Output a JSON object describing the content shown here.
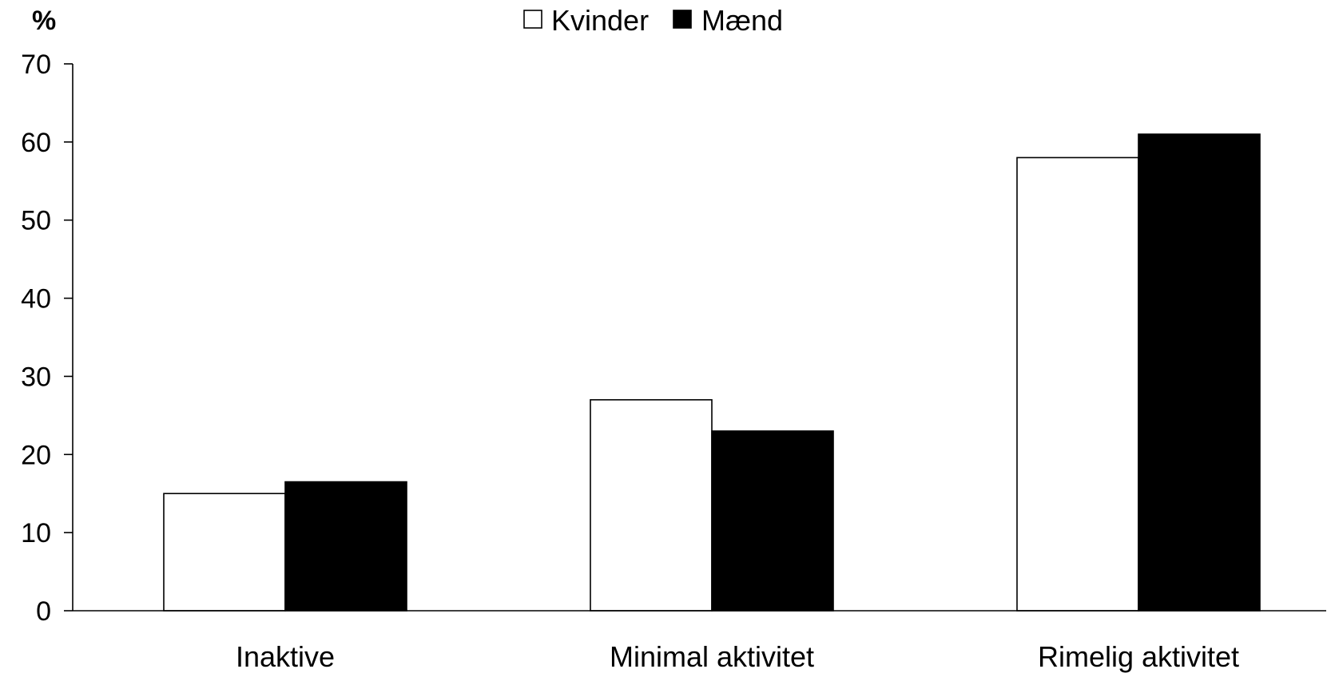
{
  "chart_data": {
    "type": "bar",
    "ylabel": "%",
    "ylim": [
      0,
      70
    ],
    "yticks": [
      0,
      10,
      20,
      30,
      40,
      50,
      60,
      70
    ],
    "categories": [
      "Inaktive",
      "Minimal aktivitet",
      "Rimelig aktivitet"
    ],
    "series": [
      {
        "name": "Kvinder",
        "values": [
          15,
          27,
          58
        ],
        "color": "#ffffff"
      },
      {
        "name": "Mænd",
        "values": [
          16.5,
          23,
          61
        ],
        "color": "#000000"
      }
    ],
    "legend": "top-center",
    "grid": false,
    "bar_outline": "#000000"
  }
}
